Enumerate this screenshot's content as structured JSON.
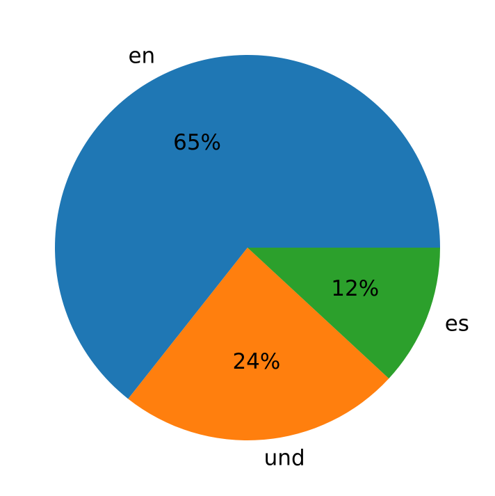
{
  "chart_data": {
    "type": "pie",
    "categories": [
      "en",
      "und",
      "es"
    ],
    "values": [
      65,
      24,
      12
    ],
    "value_labels": [
      "65%",
      "24%",
      "12%"
    ],
    "colors": [
      "#1f77b4",
      "#ff7f0e",
      "#2ca02c"
    ]
  }
}
